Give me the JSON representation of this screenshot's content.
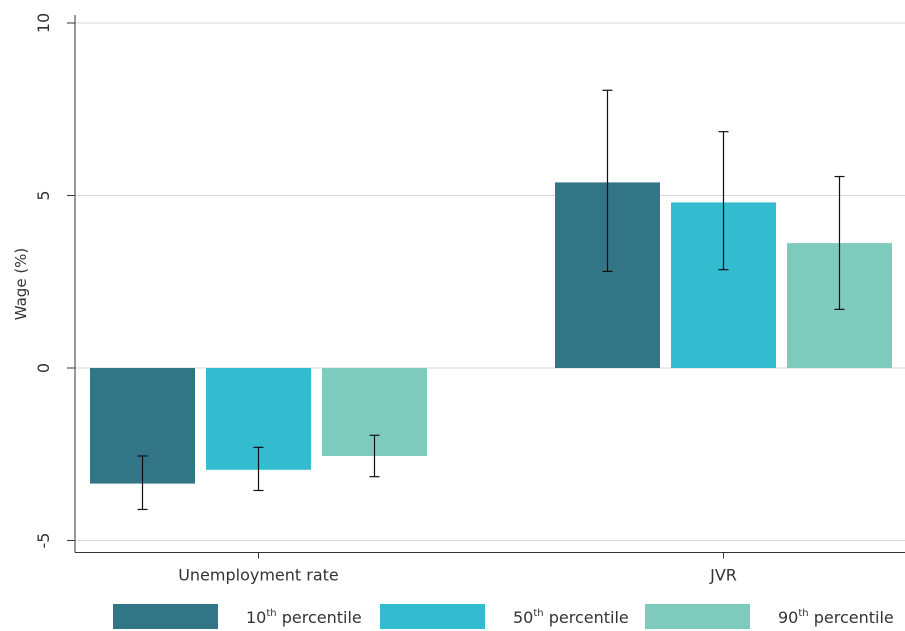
{
  "chart_data": {
    "type": "bar",
    "title": "",
    "xlabel": "",
    "ylabel": "Wage (%)",
    "ylim": [
      -5,
      10
    ],
    "yticks": [
      -5,
      0,
      5,
      10
    ],
    "ytick_labels": [
      "-5",
      "0",
      "5",
      "10"
    ],
    "grid": true,
    "legend_position": "bottom",
    "categories": [
      "Unemployment rate",
      "JVR"
    ],
    "series": [
      {
        "name": "10th percentile",
        "legend_main": "10",
        "legend_sup": "th",
        "legend_rest": " percentile",
        "color": "#327587",
        "values": [
          -3.35,
          5.38
        ],
        "ci_low": [
          -4.1,
          2.8
        ],
        "ci_high": [
          -2.55,
          8.05
        ]
      },
      {
        "name": "50th percentile",
        "legend_main": "50",
        "legend_sup": "th",
        "legend_rest": " percentile",
        "color": "#33bcd0",
        "values": [
          -2.95,
          4.8
        ],
        "ci_low": [
          -3.55,
          2.85
        ],
        "ci_high": [
          -2.3,
          6.85
        ]
      },
      {
        "name": "90th percentile",
        "legend_main": "90",
        "legend_sup": "th",
        "legend_rest": " percentile",
        "color": "#7ecbbd",
        "values": [
          -2.55,
          3.62
        ],
        "ci_low": [
          -3.15,
          1.7
        ],
        "ci_high": [
          -1.95,
          5.55
        ]
      }
    ]
  }
}
